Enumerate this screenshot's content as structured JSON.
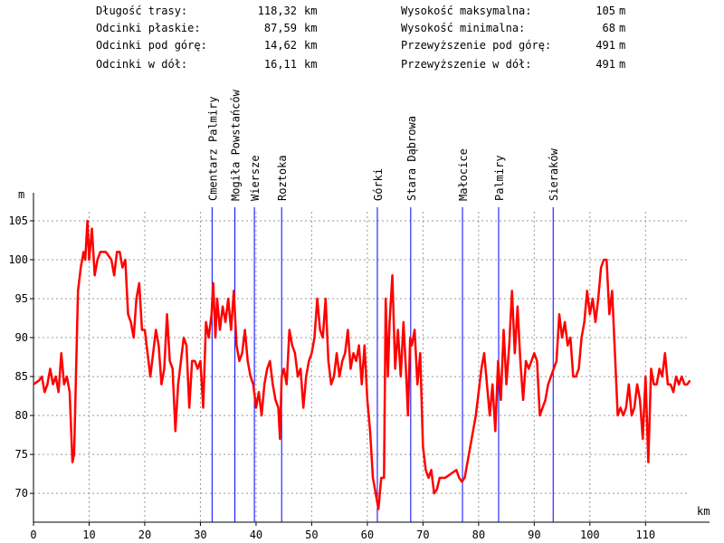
{
  "summary": {
    "left": [
      {
        "label": "Długość trasy:",
        "value": "118,32",
        "unit": "km"
      },
      {
        "label": "Odcinki płaskie:",
        "value": "87,59",
        "unit": "km"
      },
      {
        "label": "Odcinki pod górę:",
        "value": "14,62",
        "unit": "km"
      },
      {
        "label": "Odcinki w dół:",
        "value": "16,11",
        "unit": "km"
      }
    ],
    "right": [
      {
        "label": "Wysokość maksymalna:",
        "value": "105",
        "unit": "m"
      },
      {
        "label": "Wysokość minimalna:",
        "value": "68",
        "unit": "m"
      },
      {
        "label": "Przewyższenie pod górę:",
        "value": "491",
        "unit": "m"
      },
      {
        "label": "Przewyższenie w dół:",
        "value": "491",
        "unit": "m"
      }
    ]
  },
  "chart_data": {
    "type": "line",
    "ylabel": "m",
    "xlabel": "km",
    "color": "#ff0000",
    "grid": true,
    "xlim": [
      0,
      121.5
    ],
    "ylim": [
      66.3,
      108.6
    ],
    "xticks": [
      0,
      10,
      20,
      30,
      40,
      50,
      60,
      70,
      80,
      90,
      100,
      110
    ],
    "yticks": [
      70,
      75,
      80,
      85,
      90,
      95,
      100,
      105
    ],
    "x": [
      0,
      1,
      1.5,
      2,
      2.5,
      3,
      3.5,
      4,
      4.5,
      5,
      5.5,
      6,
      6.5,
      7,
      7.3,
      7.8,
      8,
      8.5,
      9,
      9.3,
      9.7,
      10,
      10.5,
      11,
      11.5,
      12,
      13,
      14,
      14.5,
      15,
      15.5,
      16,
      16.5,
      17,
      17.5,
      18,
      18.5,
      19,
      19.5,
      20,
      20.5,
      21,
      21.5,
      22,
      22.5,
      23,
      23.5,
      24,
      24.5,
      25,
      25.5,
      26,
      27,
      27.5,
      28,
      28.5,
      29,
      29.5,
      30,
      30.5,
      31,
      31.5,
      32,
      32.3,
      32.7,
      33,
      33.5,
      34,
      34.5,
      35,
      35.5,
      36,
      36.5,
      37,
      37.5,
      38,
      38.5,
      39,
      39.5,
      40,
      40.5,
      41,
      41.5,
      42,
      42.5,
      43,
      43.5,
      44,
      44.3,
      44.6,
      45,
      45.5,
      46,
      46.5,
      47,
      47.5,
      48,
      48.5,
      49,
      49.5,
      50,
      50.5,
      51,
      51.5,
      52,
      52.5,
      53,
      53.5,
      54,
      54.5,
      55,
      55.5,
      56,
      56.5,
      57,
      57.5,
      58,
      58.5,
      59,
      59.5,
      60,
      60.5,
      61,
      61.5,
      62,
      62.5,
      63,
      63.3,
      63.7,
      64,
      64.5,
      65,
      65.5,
      66,
      66.5,
      67,
      67.3,
      67.7,
      68,
      68.5,
      69,
      69.5,
      70,
      70.5,
      71,
      71.5,
      72,
      72.5,
      73,
      74,
      75,
      76,
      76.5,
      77,
      77.5,
      78,
      78.5,
      79,
      79.5,
      80,
      80.5,
      81,
      81.5,
      82,
      82.5,
      83,
      83.5,
      84,
      84.5,
      85,
      85.5,
      86,
      86.5,
      87,
      87.5,
      88,
      88.5,
      89,
      89.5,
      90,
      90.5,
      91,
      91.5,
      92,
      92.5,
      93,
      93.5,
      94,
      94.5,
      95,
      95.5,
      96,
      96.5,
      97,
      97.5,
      98,
      98.5,
      99,
      99.5,
      100,
      100.5,
      101,
      101.5,
      102,
      102.5,
      103,
      103.5,
      104,
      104.5,
      105,
      105.5,
      106,
      106.5,
      107,
      107.5,
      108,
      108.5,
      109,
      109.5,
      110,
      110.5,
      111,
      111.5,
      112,
      112.5,
      113,
      113.5,
      114,
      114.5,
      115,
      115.5,
      116,
      116.5,
      117,
      117.5,
      118
    ],
    "values": [
      84,
      84.5,
      85,
      83,
      84,
      86,
      84,
      85,
      83,
      88,
      84,
      85,
      83,
      74,
      75,
      90,
      96,
      99,
      101,
      100,
      105,
      100,
      104,
      98,
      100,
      101,
      101,
      100,
      98,
      101,
      101,
      99,
      100,
      93,
      92,
      90,
      95,
      97,
      91,
      91,
      88,
      85,
      88,
      91,
      89,
      84,
      86,
      93,
      87,
      86,
      78,
      84,
      90,
      89,
      81,
      87,
      87,
      86,
      87,
      81,
      92,
      90,
      93,
      97,
      90,
      95,
      91,
      94,
      92,
      95,
      91,
      96,
      89,
      87,
      88,
      91,
      87,
      85,
      84,
      81,
      83,
      80,
      84,
      86,
      87,
      84,
      82,
      81,
      77,
      85,
      86,
      84,
      91,
      89,
      88,
      85,
      86,
      81,
      85,
      87,
      88,
      90,
      95,
      91,
      90,
      95,
      87,
      84,
      85,
      88,
      85,
      87,
      88,
      91,
      86,
      88,
      87,
      89,
      84,
      89,
      82,
      78,
      72,
      70,
      68,
      72,
      72,
      95,
      85,
      92,
      98,
      86,
      91,
      85,
      92,
      85,
      80,
      90,
      89,
      91,
      84,
      88,
      76,
      73,
      72,
      73,
      70,
      70.5,
      72,
      72,
      72.5,
      73,
      72,
      71.5,
      72,
      74,
      76,
      78,
      80,
      83,
      86,
      88,
      84,
      80,
      84,
      78,
      87,
      82,
      91,
      84,
      89,
      96,
      88,
      94,
      87,
      82,
      87,
      86,
      87,
      88,
      87,
      80,
      81,
      82,
      84,
      85,
      86,
      87,
      93,
      90,
      92,
      89,
      90,
      85,
      85,
      86,
      90,
      92,
      96,
      93,
      95,
      92,
      95,
      99,
      100,
      100,
      93,
      96,
      88,
      80,
      81,
      80,
      81,
      84,
      80,
      81,
      84,
      82,
      77,
      85,
      74,
      86,
      84,
      84,
      86,
      85,
      88,
      84,
      84,
      83,
      85,
      84,
      85,
      84,
      84,
      84.5
    ],
    "marker_color": "#0000ff",
    "markers": [
      {
        "label": "Cmentarz Palmiry",
        "x": 32.1
      },
      {
        "label": "Mogiła Powstańców",
        "x": 36.2
      },
      {
        "label": "Wiersze",
        "x": 39.7
      },
      {
        "label": "Roztoka",
        "x": 44.6
      },
      {
        "label": "Górki",
        "x": 61.8
      },
      {
        "label": "Stara Dąbrowa",
        "x": 67.8
      },
      {
        "label": "Małocice",
        "x": 77.1
      },
      {
        "label": "Palmiry",
        "x": 83.6
      },
      {
        "label": "Sieraków",
        "x": 93.4
      }
    ]
  }
}
